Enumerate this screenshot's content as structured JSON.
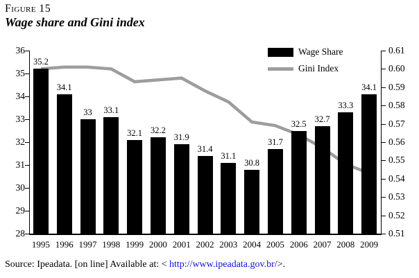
{
  "figure": {
    "label": "Figure 15",
    "title": "Wage share and Gini index"
  },
  "chart_data": {
    "type": "bar",
    "title": "Wage share and Gini index",
    "categories": [
      "1995",
      "1996",
      "1997",
      "1998",
      "1999",
      "2000",
      "2001",
      "2002",
      "2003",
      "2004",
      "2005",
      "2006",
      "2007",
      "2008",
      "2009"
    ],
    "series": [
      {
        "name": "Wage Share",
        "type": "bar",
        "axis": "left",
        "color": "#000000",
        "values": [
          35.2,
          34.1,
          33,
          33.1,
          32.1,
          32.2,
          31.9,
          31.4,
          31.1,
          30.8,
          31.7,
          32.5,
          32.7,
          33.3,
          34.1
        ],
        "point_labels": [
          "35.2",
          "34.1",
          "33",
          "33.1",
          "32.1",
          "32.2",
          "31.9",
          "31.4",
          "31.1",
          "30.8",
          "31.7",
          "32.5",
          "32.7",
          "33.3",
          "34.1"
        ]
      },
      {
        "name": "Gini Index",
        "type": "line",
        "axis": "right",
        "color": "#9d9d9d",
        "values": [
          0.6,
          0.601,
          0.601,
          0.6,
          0.593,
          0.594,
          0.595,
          0.588,
          0.582,
          0.571,
          0.569,
          0.564,
          0.557,
          0.548,
          0.543
        ]
      }
    ],
    "left_axis": {
      "min": 28,
      "max": 36,
      "step": 1,
      "ticks": [
        "36",
        "35",
        "34",
        "33",
        "32",
        "31",
        "30",
        "29",
        "28"
      ]
    },
    "right_axis": {
      "min": 0.51,
      "max": 0.61,
      "step": 0.01,
      "ticks": [
        "0.61",
        "0.60",
        "0.59",
        "0.58",
        "0.57",
        "0.56",
        "0.55",
        "0.54",
        "0.53",
        "0.52",
        "0.51"
      ]
    },
    "grid": false,
    "legend_position": "top-right",
    "legend": [
      {
        "label": "Wage Share",
        "swatch": "bar"
      },
      {
        "label": "Gini Index",
        "swatch": "line"
      }
    ]
  },
  "source": {
    "prefix": "Source: Ipeadata. [on line] Available at: < ",
    "link": "http://www.ipeadata.gov.br/",
    "suffix": ">.",
    "link_color": "#0f0fe0"
  }
}
